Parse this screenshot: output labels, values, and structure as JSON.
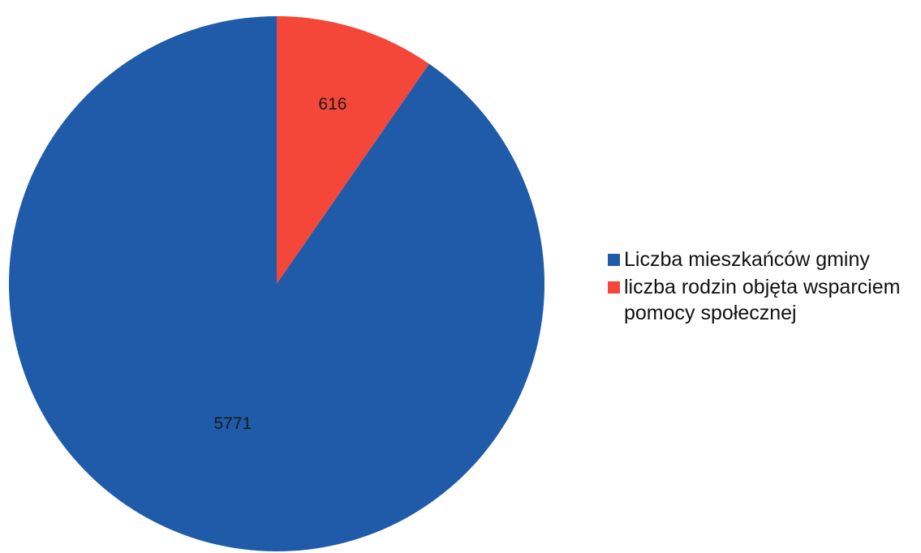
{
  "chart_data": {
    "type": "pie",
    "title": "",
    "categories": [
      "Liczba mieszkańców gminy",
      "liczba rodzin objęta wsparciem pomocy społecznej"
    ],
    "values": [
      5771,
      616
    ],
    "colors": [
      "#1f5ba8",
      "#f4473a"
    ],
    "data_labels": [
      "5771",
      "616"
    ],
    "legend_position": "right",
    "start_angle": "top (12 o'clock)",
    "direction": "clockwise, second slice drawn first"
  }
}
